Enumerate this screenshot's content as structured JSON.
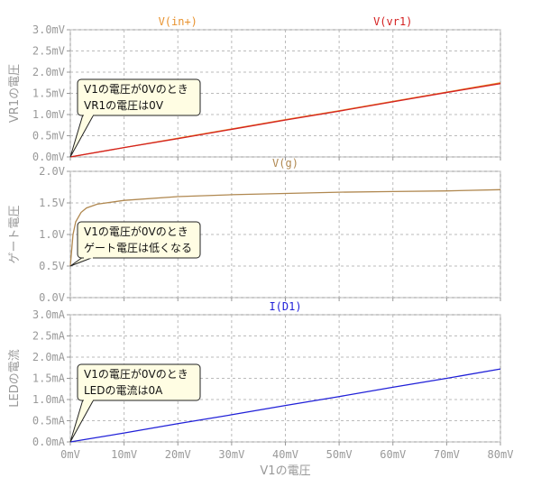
{
  "chart_data": [
    {
      "type": "line",
      "ylabel": "VR1の電圧",
      "x": [
        0,
        10,
        20,
        30,
        40,
        50,
        60,
        70,
        80
      ],
      "series": [
        {
          "name": "V(in+)",
          "color": "#e8922e",
          "values": [
            0,
            0.22,
            0.44,
            0.66,
            0.88,
            1.09,
            1.31,
            1.53,
            1.75
          ]
        },
        {
          "name": "V(vr1)",
          "color": "#d42020",
          "values": [
            0,
            0.22,
            0.43,
            0.65,
            0.87,
            1.08,
            1.3,
            1.52,
            1.73
          ]
        }
      ],
      "xlim": [
        0,
        80
      ],
      "xticks": [
        0,
        10,
        20,
        30,
        40,
        50,
        60,
        70,
        80
      ],
      "ylim": [
        0,
        3
      ],
      "yticks": [
        {
          "value": 0,
          "label": "0.0mV"
        },
        {
          "value": 0.5,
          "label": "0.5mV"
        },
        {
          "value": 1,
          "label": "1.0mV"
        },
        {
          "value": 1.5,
          "label": "1.5mV"
        },
        {
          "value": 2,
          "label": "2.0mV"
        },
        {
          "value": 2.5,
          "label": "2.5mV"
        },
        {
          "value": 3,
          "label": "3.0mV"
        }
      ],
      "grid": true,
      "annotation": [
        "V1の電圧が0Vのとき",
        "VR1の電圧は0V"
      ]
    },
    {
      "type": "line",
      "ylabel": "ゲート電圧",
      "x": [
        0,
        0.5,
        1,
        2,
        3,
        5,
        10,
        20,
        30,
        40,
        50,
        60,
        70,
        80
      ],
      "series": [
        {
          "name": "V(g)",
          "color": "#b08850",
          "values": [
            0.5,
            1.0,
            1.2,
            1.35,
            1.42,
            1.48,
            1.54,
            1.6,
            1.63,
            1.65,
            1.67,
            1.68,
            1.69,
            1.71
          ]
        }
      ],
      "xlim": [
        0,
        80
      ],
      "xticks": [
        0,
        10,
        20,
        30,
        40,
        50,
        60,
        70,
        80
      ],
      "ylim": [
        0,
        2
      ],
      "yticks": [
        {
          "value": 0,
          "label": "0.0V"
        },
        {
          "value": 0.5,
          "label": "0.5V"
        },
        {
          "value": 1,
          "label": "1.0V"
        },
        {
          "value": 1.5,
          "label": "1.5V"
        },
        {
          "value": 2,
          "label": "2.0V"
        }
      ],
      "grid": true,
      "annotation": [
        "V1の電圧が0Vのとき",
        "ゲート電圧は低くなる"
      ]
    },
    {
      "type": "line",
      "ylabel": "LEDの電流",
      "xlabel": "V1の電圧",
      "x": [
        0,
        10,
        20,
        30,
        40,
        50,
        60,
        70,
        80
      ],
      "series": [
        {
          "name": "I(D1)",
          "color": "#2020d8",
          "values": [
            0,
            0.21,
            0.43,
            0.64,
            0.86,
            1.07,
            1.29,
            1.5,
            1.72
          ]
        }
      ],
      "xlim": [
        0,
        80
      ],
      "xticks": [
        {
          "value": 0,
          "label": "0mV"
        },
        {
          "value": 10,
          "label": "10mV"
        },
        {
          "value": 20,
          "label": "20mV"
        },
        {
          "value": 30,
          "label": "30mV"
        },
        {
          "value": 40,
          "label": "40mV"
        },
        {
          "value": 50,
          "label": "50mV"
        },
        {
          "value": 60,
          "label": "60mV"
        },
        {
          "value": 70,
          "label": "70mV"
        },
        {
          "value": 80,
          "label": "80mV"
        }
      ],
      "ylim": [
        0,
        3
      ],
      "yticks": [
        {
          "value": 0,
          "label": "0.0mA"
        },
        {
          "value": 0.5,
          "label": "0.5mA"
        },
        {
          "value": 1,
          "label": "1.0mA"
        },
        {
          "value": 1.5,
          "label": "1.5mA"
        },
        {
          "value": 2,
          "label": "2.0mA"
        },
        {
          "value": 2.5,
          "label": "2.5mA"
        },
        {
          "value": 3,
          "label": "3.0mA"
        }
      ],
      "grid": true,
      "annotation": [
        "V1の電圧が0Vのとき",
        "LEDの電流は0A"
      ]
    }
  ]
}
